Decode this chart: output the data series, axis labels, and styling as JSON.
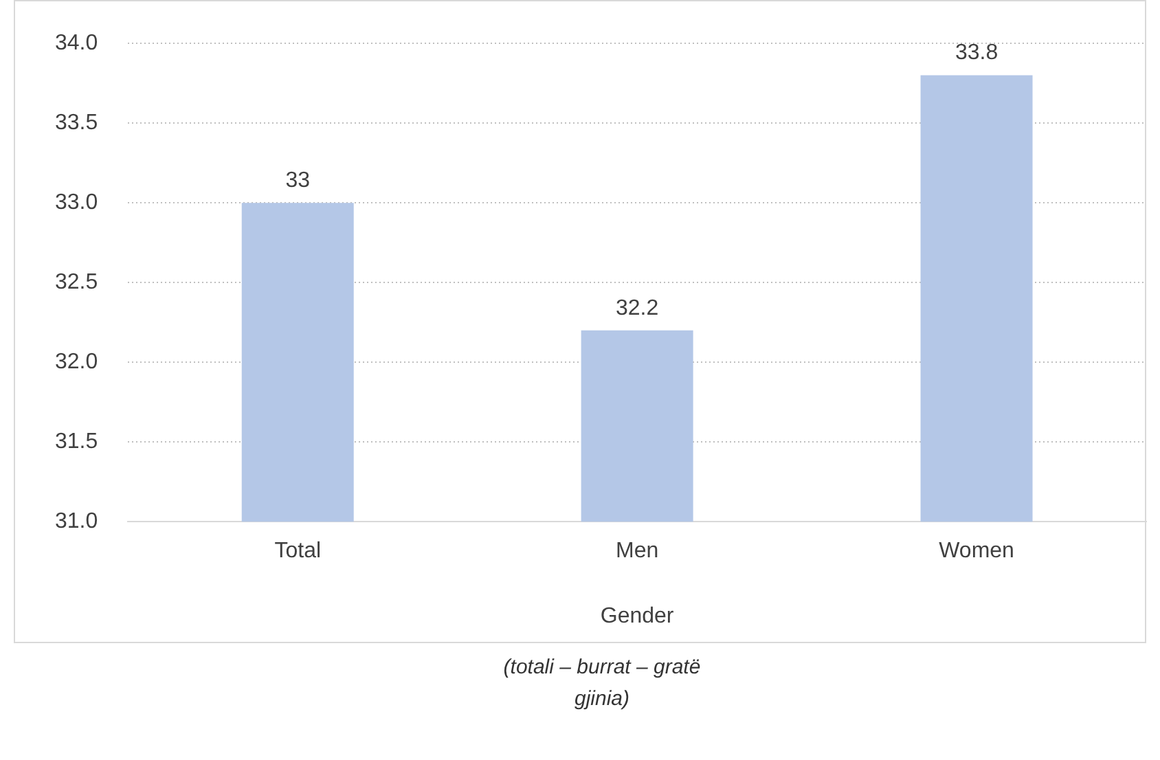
{
  "chart_data": {
    "type": "bar",
    "xlabel": "Gender",
    "categories": [
      "Total",
      "Men",
      "Women"
    ],
    "values": [
      33,
      32.2,
      33.8
    ],
    "color": "#b4c7e7",
    "ylim": [
      31,
      34
    ],
    "yticks": [
      {
        "value": 31,
        "label": "31.0"
      },
      31.5,
      {
        "value": 32,
        "label": "32.0"
      },
      32.5,
      {
        "value": 33,
        "label": "33.0"
      },
      33.5,
      {
        "value": 34,
        "label": "34.0"
      }
    ],
    "grid": "y",
    "data_labels": true,
    "legend": false,
    "annotations": [
      "(totali – burrat – gratë gjinia)"
    ]
  }
}
